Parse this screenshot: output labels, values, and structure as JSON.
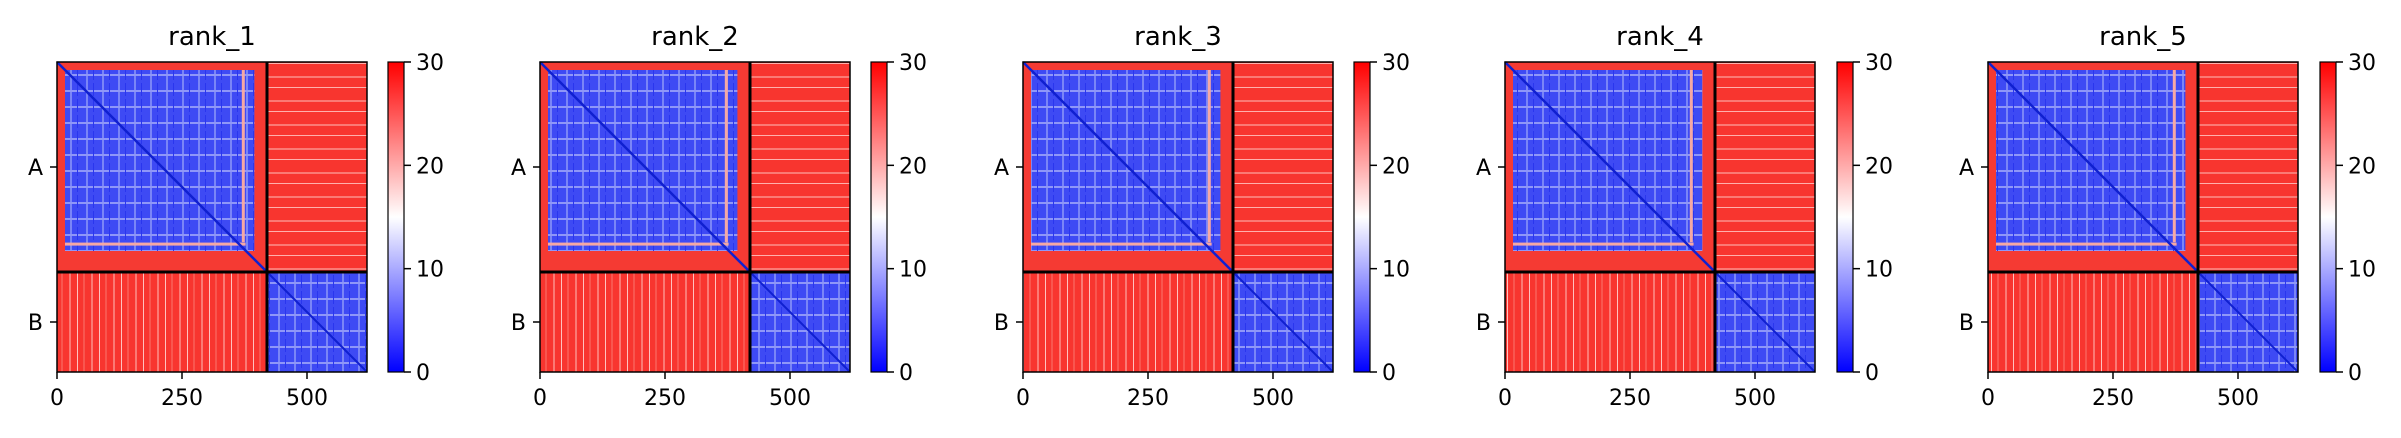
{
  "chart_data": {
    "type": "heatmap",
    "colormap": {
      "name": "bwr",
      "low": "#0000ff",
      "mid": "#ffffff",
      "high": "#ff0000"
    },
    "chain_labels": [
      "A",
      "B"
    ],
    "chain_boundary": 420,
    "n_residues": 620,
    "x_ticks": [
      0,
      250,
      500
    ],
    "colorbar": {
      "min": 0,
      "max": 30,
      "ticks": [
        0,
        10,
        20,
        30
      ]
    },
    "panels": [
      {
        "title": "rank_1"
      },
      {
        "title": "rank_2"
      },
      {
        "title": "rank_3"
      },
      {
        "title": "rank_4"
      },
      {
        "title": "rank_5"
      }
    ]
  }
}
